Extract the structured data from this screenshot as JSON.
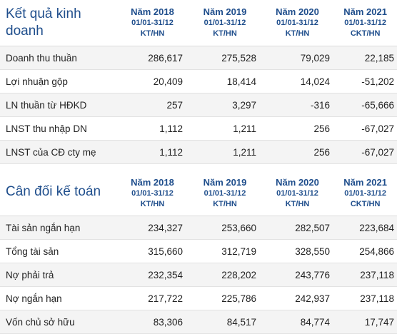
{
  "income": {
    "title": "Kết quả kinh doanh",
    "columns": [
      {
        "year": "Năm 2018",
        "range": "01/01-31/12",
        "type": "KT/HN"
      },
      {
        "year": "Năm 2019",
        "range": "01/01-31/12",
        "type": "KT/HN"
      },
      {
        "year": "Năm 2020",
        "range": "01/01-31/12",
        "type": "KT/HN"
      },
      {
        "year": "Năm 2021",
        "range": "01/01-31/12",
        "type": "CKT/HN"
      }
    ],
    "rows": [
      {
        "label": "Doanh thu thuần",
        "values": [
          "286,617",
          "275,528",
          "79,029",
          "22,185"
        ]
      },
      {
        "label": "Lợi nhuận gộp",
        "values": [
          "20,409",
          "18,414",
          "14,024",
          "-51,202"
        ]
      },
      {
        "label": "LN thuần từ HĐKD",
        "values": [
          "257",
          "3,297",
          "-316",
          "-65,666"
        ]
      },
      {
        "label": "LNST thu nhập DN",
        "values": [
          "1,112",
          "1,211",
          "256",
          "-67,027"
        ]
      },
      {
        "label": "LNST của CĐ cty mẹ",
        "values": [
          "1,112",
          "1,211",
          "256",
          "-67,027"
        ]
      }
    ]
  },
  "balance": {
    "title": "Cân đối kế toán",
    "columns": [
      {
        "year": "Năm 2018",
        "range": "01/01-31/12",
        "type": "KT/HN"
      },
      {
        "year": "Năm 2019",
        "range": "01/01-31/12",
        "type": "KT/HN"
      },
      {
        "year": "Năm 2020",
        "range": "01/01-31/12",
        "type": "KT/HN"
      },
      {
        "year": "Năm 2021",
        "range": "01/01-31/12",
        "type": "CKT/HN"
      }
    ],
    "rows": [
      {
        "label": "Tài sản ngắn hạn",
        "values": [
          "234,327",
          "253,660",
          "282,507",
          "223,684"
        ]
      },
      {
        "label": "Tổng tài sản",
        "values": [
          "315,660",
          "312,719",
          "328,550",
          "254,866"
        ]
      },
      {
        "label": "Nợ phải trả",
        "values": [
          "232,354",
          "228,202",
          "243,776",
          "237,118"
        ]
      },
      {
        "label": "Nợ ngắn hạn",
        "values": [
          "217,722",
          "225,786",
          "242,937",
          "237,118"
        ]
      },
      {
        "label": "Vốn chủ sở hữu",
        "values": [
          "83,306",
          "84,517",
          "84,774",
          "17,747"
        ]
      }
    ]
  }
}
